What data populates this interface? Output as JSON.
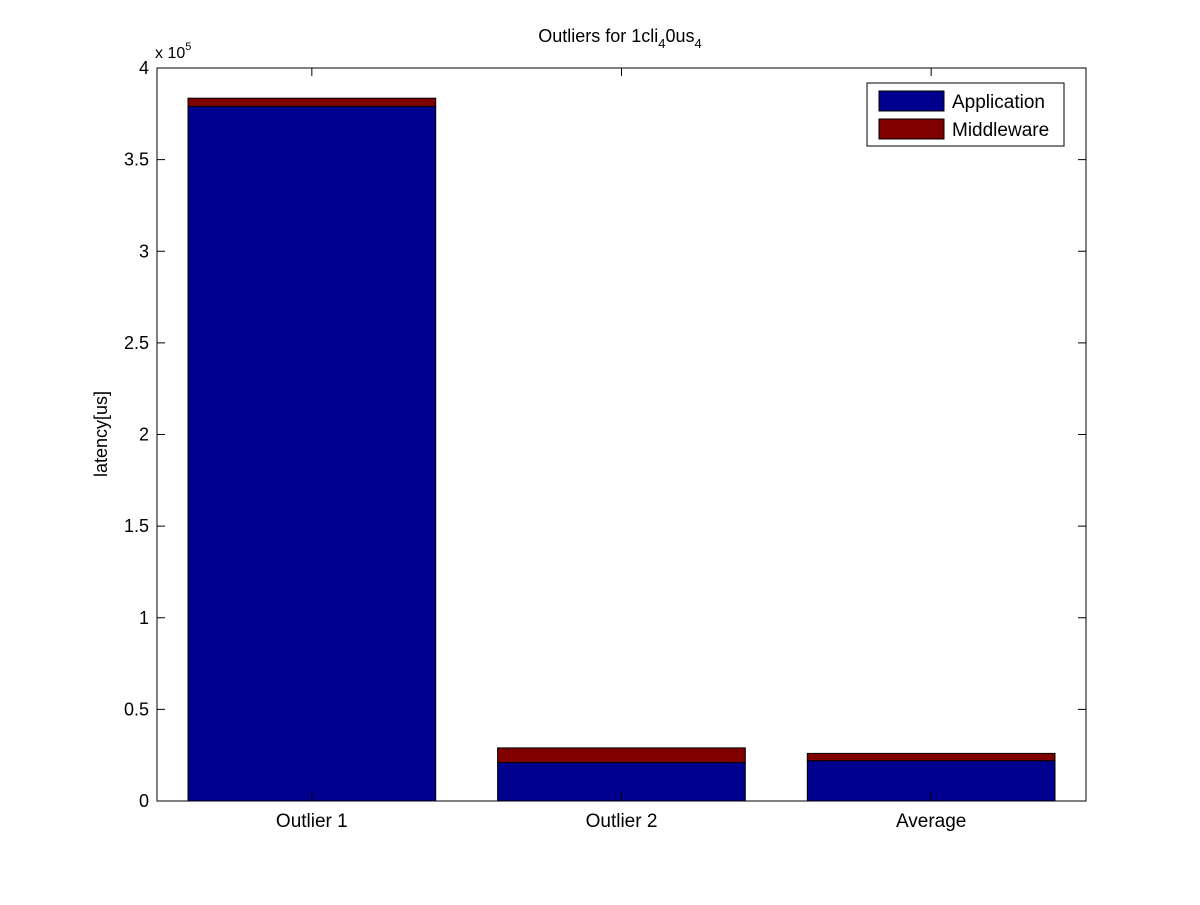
{
  "chart_data": {
    "type": "bar",
    "stacked": true,
    "title": {
      "main": "Outliers for 1cli",
      "sub1": "4",
      "mid": "0us",
      "sub2": "4"
    },
    "xlabel": "",
    "ylabel": "latency[us]",
    "categories": [
      "Outlier 1",
      "Outlier 2",
      "Average"
    ],
    "series": [
      {
        "name": "Application",
        "values": [
          379000,
          21000,
          22000
        ],
        "color": "#00008f"
      },
      {
        "name": "Middleware",
        "values": [
          4500,
          8000,
          4000
        ],
        "color": "#800000"
      }
    ],
    "ylim": [
      0,
      400000
    ],
    "yticks": [
      0,
      50000,
      100000,
      150000,
      200000,
      250000,
      300000,
      350000,
      400000
    ],
    "ytick_labels": [
      "0",
      "0.5",
      "1",
      "1.5",
      "2",
      "2.5",
      "3",
      "3.5",
      "4"
    ],
    "y_multiplier": {
      "base": "x 10",
      "exp": "5"
    },
    "grid": false,
    "legend_position": "top-right"
  }
}
